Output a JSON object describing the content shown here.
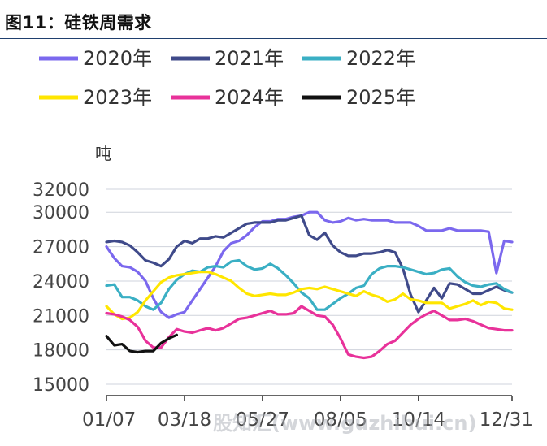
{
  "figure": {
    "title": "图11：硅铁周需求",
    "watermark": "股知汇(www.guzhihui.cn)"
  },
  "chart_data": {
    "type": "line",
    "ylabel": "吨",
    "ylim": [
      15000,
      32000
    ],
    "yticks": [
      15000,
      18000,
      21000,
      24000,
      27000,
      30000,
      32000
    ],
    "xticks": [
      "01/07",
      "03/18",
      "05/27",
      "08/05",
      "10/14",
      "12/31"
    ],
    "x_range_weeks": [
      1,
      53
    ],
    "grid": "horizontal",
    "legend_position": "top",
    "series": [
      {
        "name": "2020年",
        "color": "#7b68ee",
        "values": [
          27000,
          26000,
          25300,
          25200,
          24800,
          24000,
          22500,
          21300,
          20800,
          21100,
          21300,
          22300,
          23300,
          24300,
          25300,
          26600,
          27300,
          27500,
          28000,
          28700,
          29200,
          29200,
          29400,
          29400,
          29600,
          29700,
          30000,
          30000,
          29300,
          29100,
          29200,
          29500,
          29300,
          29400,
          29300,
          29300,
          29300,
          29100,
          29100,
          29100,
          28800,
          28400,
          28400,
          28400,
          28600,
          28400,
          28400,
          28400,
          28400,
          28300,
          24700,
          27500,
          27400
        ]
      },
      {
        "name": "2021年",
        "color": "#3f4a8a",
        "values": [
          27400,
          27500,
          27400,
          27100,
          26500,
          25800,
          25600,
          25300,
          25900,
          27000,
          27500,
          27300,
          27700,
          27700,
          27900,
          27800,
          28200,
          28600,
          29000,
          29100,
          29100,
          29100,
          29300,
          29300,
          29500,
          29700,
          28000,
          27600,
          28200,
          27100,
          26500,
          26200,
          26200,
          26400,
          26400,
          26500,
          26700,
          26500,
          25100,
          22800,
          21300,
          22300,
          23400,
          22500,
          23800,
          23700,
          23300,
          22900,
          22900,
          23200,
          23500,
          23200,
          23000
        ]
      },
      {
        "name": "2022年",
        "color": "#3aafc4",
        "values": [
          23600,
          23700,
          22600,
          22600,
          22300,
          21800,
          21500,
          22100,
          23300,
          24100,
          24600,
          24900,
          24800,
          25200,
          25300,
          25200,
          25700,
          25800,
          25300,
          25000,
          25100,
          25500,
          25100,
          24500,
          23800,
          23000,
          22500,
          21500,
          21500,
          22000,
          22500,
          22900,
          23400,
          23600,
          24600,
          25100,
          25300,
          25300,
          25200,
          25000,
          24800,
          24600,
          24700,
          25000,
          25100,
          24400,
          23900,
          23600,
          23500,
          23700,
          23800,
          23300,
          23000
        ]
      },
      {
        "name": "2023年",
        "color": "#ffe600",
        "values": [
          21800,
          21100,
          20700,
          20800,
          21300,
          22300,
          23100,
          23900,
          24300,
          24500,
          24600,
          24700,
          24800,
          24800,
          24600,
          24300,
          24000,
          23400,
          22900,
          22700,
          22800,
          22900,
          22800,
          22800,
          23000,
          23300,
          23400,
          23300,
          23500,
          23300,
          23100,
          22900,
          22700,
          23100,
          22800,
          22600,
          22200,
          22400,
          22900,
          22400,
          22300,
          22100,
          22100,
          22100,
          21600,
          21800,
          22000,
          22300,
          21900,
          22200,
          22100,
          21600,
          21500
        ]
      },
      {
        "name": "2024年",
        "color": "#e8329a",
        "values": [
          21200,
          21100,
          20900,
          20600,
          20000,
          18800,
          18200,
          18200,
          19100,
          19800,
          19600,
          19500,
          19700,
          19900,
          19700,
          19900,
          20300,
          20700,
          20800,
          21000,
          21200,
          21400,
          21100,
          21100,
          21200,
          21800,
          21400,
          21000,
          20900,
          20200,
          19000,
          17600,
          17400,
          17300,
          17400,
          17900,
          18500,
          18800,
          19500,
          20200,
          20700,
          21100,
          21400,
          21000,
          20600,
          20600,
          20700,
          20500,
          20200,
          19900,
          19800,
          19700,
          19700
        ]
      },
      {
        "name": "2025年",
        "color": "#111111",
        "values": [
          19200,
          18400,
          18500,
          17900,
          17800,
          17900,
          17900,
          18600,
          19000,
          19300
        ]
      }
    ]
  }
}
